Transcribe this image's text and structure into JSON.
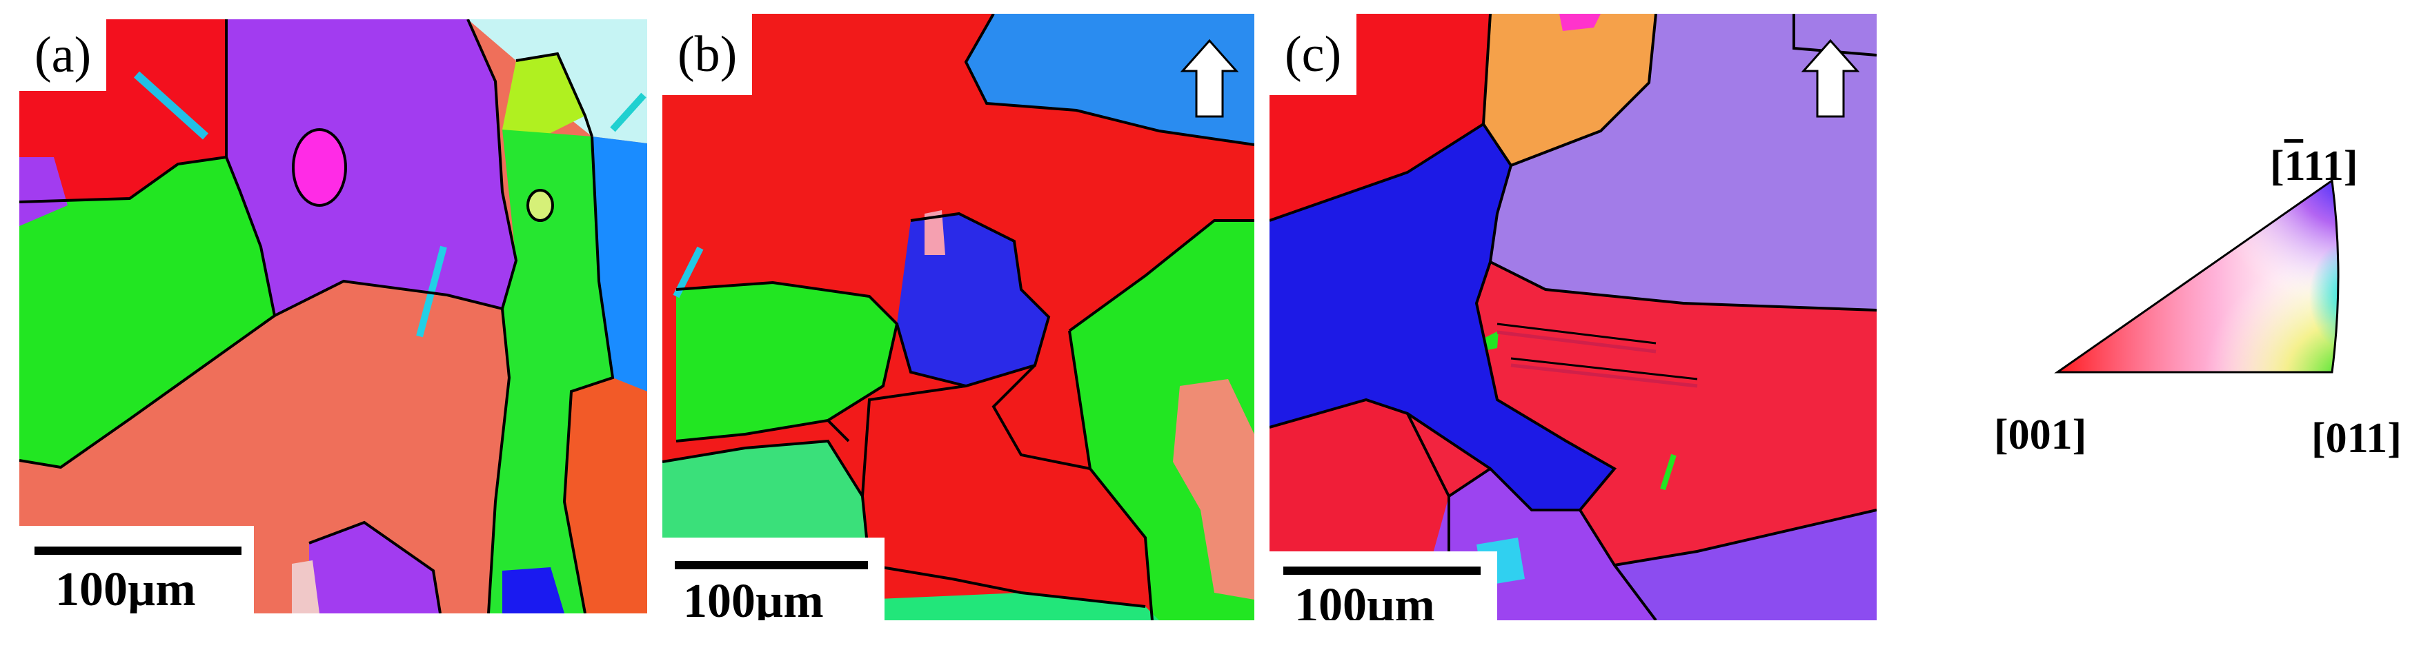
{
  "figure": {
    "panels": [
      {
        "label": "(a)",
        "scale_bar": "100µm",
        "has_arrow": false
      },
      {
        "label": "(b)",
        "scale_bar": "100µm",
        "has_arrow": true
      },
      {
        "label": "(c)",
        "scale_bar": "100µm",
        "has_arrow": true
      }
    ],
    "ipf_key": {
      "corner_top_bar": "1",
      "corner_top_rest": "11",
      "corner_top_open": "[",
      "corner_top_close": "]",
      "corner_left": "[001]",
      "corner_right": "[011]"
    },
    "colors": {
      "red_001": "#ff1a1a",
      "green_011": "#22e622",
      "blue_111": "#1a1aff",
      "purple": "#a03cf0",
      "salmon": "#ef6f5a",
      "orange": "#f5a14a",
      "light_purple": "#a77df0",
      "crimson": "#f2243f"
    }
  }
}
